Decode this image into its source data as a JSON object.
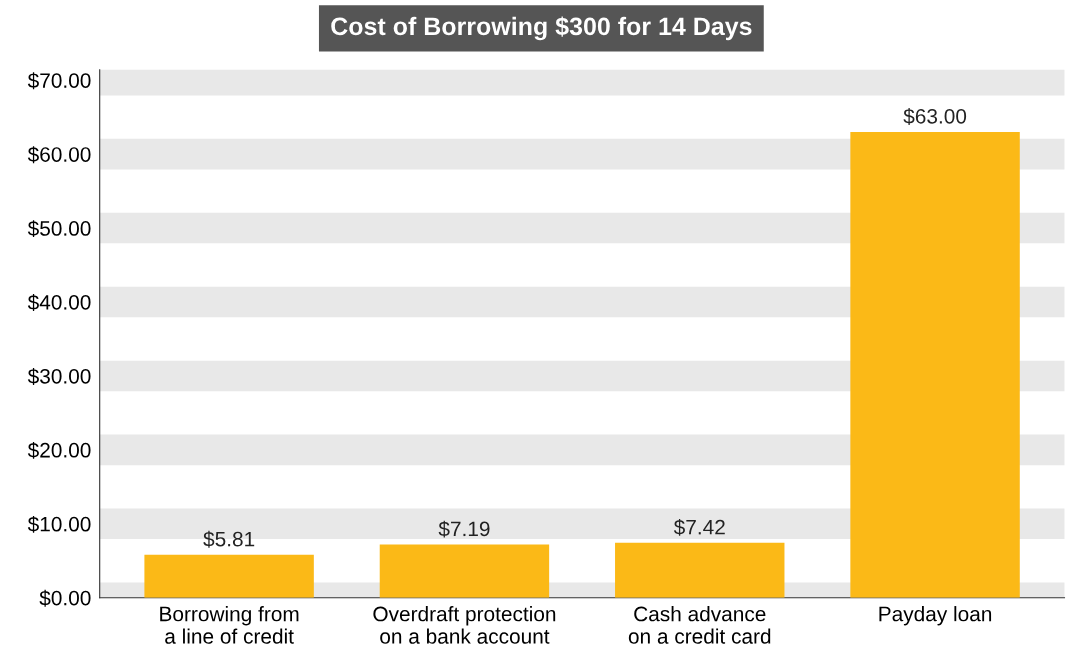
{
  "chart_data": {
    "type": "bar",
    "title": "Cost of Borrowing $300 for 14 Days",
    "categories": [
      "Borrowing from\na line of credit",
      "Overdraft protection\non a bank account",
      "Cash advance\non a credit card",
      "Payday loan"
    ],
    "values": [
      5.81,
      7.19,
      7.42,
      63.0
    ],
    "value_labels": [
      "$5.81",
      "$7.19",
      "$7.42",
      "$63.00"
    ],
    "color": "#fbb917",
    "ylim": [
      0,
      71.4
    ],
    "yticks": [
      {
        "value": 0,
        "label": "$0.00"
      },
      {
        "value": 10,
        "label": "$10.00"
      },
      {
        "value": 20,
        "label": "$20.00"
      },
      {
        "value": 30,
        "label": "$30.00"
      },
      {
        "value": 40,
        "label": "$40.00"
      },
      {
        "value": 50,
        "label": "$50.00"
      },
      {
        "value": 60,
        "label": "$60.00"
      },
      {
        "value": 70,
        "label": "$70.00"
      }
    ],
    "grid": "y"
  }
}
